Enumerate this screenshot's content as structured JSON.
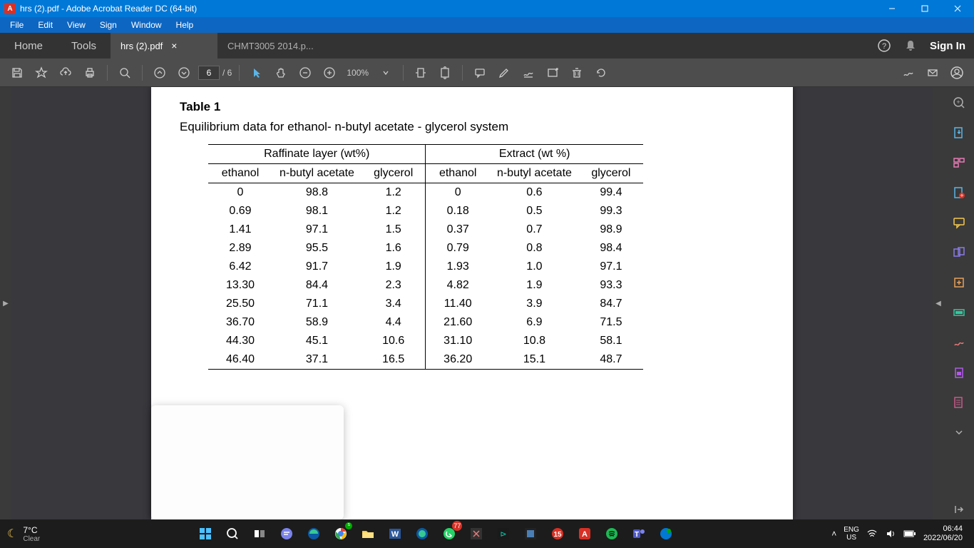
{
  "window": {
    "title": "hrs (2).pdf - Adobe Acrobat Reader DC (64-bit)"
  },
  "menubar": [
    "File",
    "Edit",
    "View",
    "Sign",
    "Window",
    "Help"
  ],
  "tabstrip": {
    "home": "Home",
    "tools": "Tools",
    "tabs": [
      {
        "label": "hrs (2).pdf",
        "active": true
      },
      {
        "label": "CHMT3005 2014.p...",
        "active": false
      }
    ],
    "signin": "Sign In"
  },
  "toolbar": {
    "page_current": "6",
    "page_total": "/ 6",
    "zoom": "100%"
  },
  "document": {
    "table_label": "Table 1",
    "caption": "Equilibrium data for ethanol- n-butyl acetate - glycerol system",
    "group_headers": [
      "Raffinate layer (wt%)",
      "Extract (wt %)"
    ],
    "columns": [
      "ethanol",
      "n-butyl acetate",
      "glycerol",
      "ethanol",
      "n-butyl acetate",
      "glycerol"
    ],
    "rows": [
      [
        "0",
        "98.8",
        "1.2",
        "0",
        "0.6",
        "99.4"
      ],
      [
        "0.69",
        "98.1",
        "1.2",
        "0.18",
        "0.5",
        "99.3"
      ],
      [
        "1.41",
        "97.1",
        "1.5",
        "0.37",
        "0.7",
        "98.9"
      ],
      [
        "2.89",
        "95.5",
        "1.6",
        "0.79",
        "0.8",
        "98.4"
      ],
      [
        "6.42",
        "91.7",
        "1.9",
        "1.93",
        "1.0",
        "97.1"
      ],
      [
        "13.30",
        "84.4",
        "2.3",
        "4.82",
        "1.9",
        "93.3"
      ],
      [
        "25.50",
        "71.1",
        "3.4",
        "11.40",
        "3.9",
        "84.7"
      ],
      [
        "36.70",
        "58.9",
        "4.4",
        "21.60",
        "6.9",
        "71.5"
      ],
      [
        "44.30",
        "45.1",
        "10.6",
        "31.10",
        "10.8",
        "58.1"
      ],
      [
        "46.40",
        "37.1",
        "16.5",
        "36.20",
        "15.1",
        "48.7"
      ]
    ]
  },
  "taskbar": {
    "weather_temp": "7°C",
    "weather_desc": "Clear",
    "lang1": "ENG",
    "lang2": "US",
    "time": "06:44",
    "date": "2022/06/20",
    "badge": "77"
  },
  "colors": {
    "titlebar": "#0078d7",
    "toolbar": "#4d4d4d",
    "right_icons": [
      "#b0b0b0",
      "#5ab5e8",
      "#e87ab5",
      "#5ab5e8",
      "#f5c84c",
      "#8a7ae8",
      "#e8a05a",
      "#32c8a0",
      "#e87a7a",
      "#b05ae8",
      "#c85a8a",
      "#b0b0b0",
      "#b0b0b0"
    ]
  }
}
